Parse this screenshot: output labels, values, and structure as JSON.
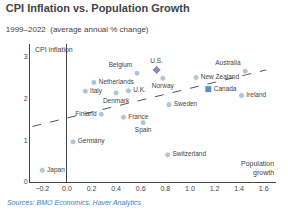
{
  "chart_data": {
    "type": "scatter",
    "title": "CPI Inflation vs. Population Growth",
    "subtitle": "1999–2022  (average annual % change)",
    "xlabel": "Population\ngrowth",
    "ylabel": "CPI inflation",
    "annotations": [
      {
        "text": "Sources: BMO Economics, Haver Analytics",
        "color": "#3a7fc1"
      }
    ],
    "xlim": [
      -0.3,
      1.7
    ],
    "ylim": [
      0,
      3.3
    ],
    "xticks": [
      {
        "value": -0.2,
        "label": "−0.2"
      },
      {
        "value": 0.0,
        "label": "0.0"
      },
      0.2,
      0.4,
      0.6,
      0.8,
      {
        "value": 1.0,
        "label": "1.0"
      },
      1.2,
      1.4,
      1.6
    ],
    "yticks": [
      0,
      1,
      2,
      3
    ],
    "grid": false,
    "series": [
      {
        "type": "line",
        "line_style": "dashed",
        "color": "#555555",
        "x": [
          -0.28,
          1.62
        ],
        "values": [
          1.33,
          2.68
        ]
      },
      {
        "type": "scatter",
        "x": [
          -0.2,
          0.05,
          0.15,
          0.22,
          0.28,
          0.4,
          0.5,
          0.46,
          0.57,
          0.62,
          0.73,
          0.78,
          0.83,
          0.82,
          1.05,
          1.15,
          1.42,
          1.45
        ],
        "values": [
          0.28,
          0.96,
          2.17,
          2.38,
          1.62,
          2.13,
          2.18,
          1.55,
          2.6,
          1.42,
          2.68,
          2.48,
          1.85,
          0.65,
          2.5,
          2.22,
          2.07,
          2.65
        ],
        "labels": [
          "Japan",
          "Germany",
          "Italy",
          "Netherlands",
          "Finland",
          "Denmark",
          "U.K.",
          "France",
          "Belgium",
          "Spain",
          "U.S.",
          "Norway",
          "Sweden",
          "Switzerland",
          "New Zealand",
          "Canada",
          "Ireland",
          "Australia"
        ],
        "colors": [
          "#8eafc2",
          "#8eafc2",
          "#8eafc2",
          "#8eafc2",
          "#8eafc2",
          "#8eafc2",
          "#8eafc2",
          "#8eafc2",
          "#8eafc2",
          "#8eafc2",
          "#6b4fa0",
          "#8eafc2",
          "#8eafc2",
          "#8eafc2",
          "#8eafc2",
          "#1461a8",
          "#8eafc2",
          "#8eafc2"
        ],
        "markers": [
          "circle",
          "circle",
          "circle",
          "circle",
          "circle",
          "circle",
          "circle",
          "circle",
          "circle",
          "circle",
          "diamond",
          "circle",
          "circle",
          "circle",
          "circle",
          "square",
          "circle",
          "circle"
        ]
      }
    ]
  }
}
